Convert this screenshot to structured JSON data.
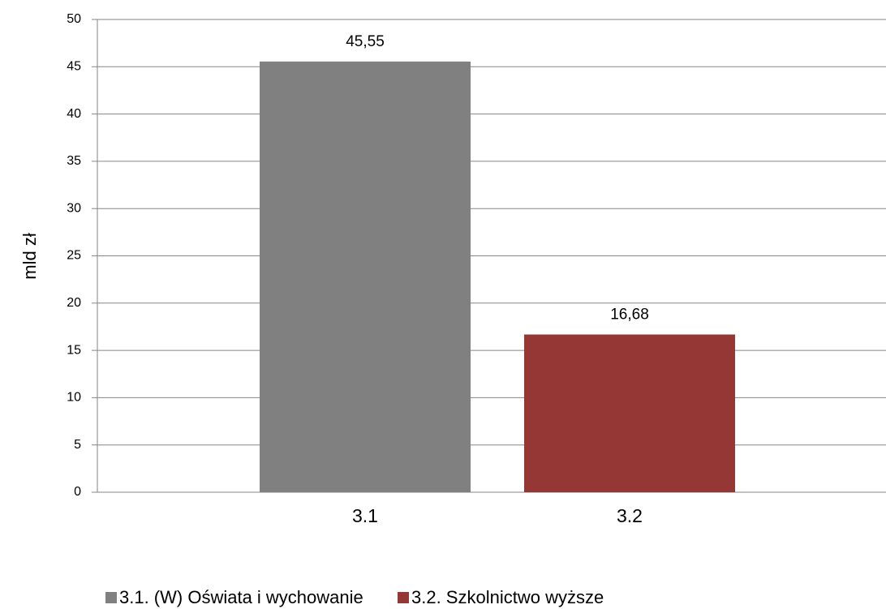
{
  "chart_data": {
    "type": "bar",
    "y_label": "mld zł",
    "categories": [
      "3.1",
      "3.2"
    ],
    "series": [
      {
        "name": "3.1. (W) Oświata i wychowanie",
        "color": "#808080",
        "values": [
          45.55,
          null
        ],
        "value_labels": [
          "45,55",
          null
        ]
      },
      {
        "name": "3.2. Szkolnictwo wyższe",
        "color": "#953735",
        "values": [
          null,
          16.68
        ],
        "value_labels": [
          null,
          "16,68"
        ]
      }
    ],
    "ylim": [
      0,
      50
    ],
    "yticks": [
      0,
      5,
      10,
      15,
      20,
      25,
      30,
      35,
      40,
      45,
      50
    ],
    "grid": true,
    "legend": "bottom"
  }
}
